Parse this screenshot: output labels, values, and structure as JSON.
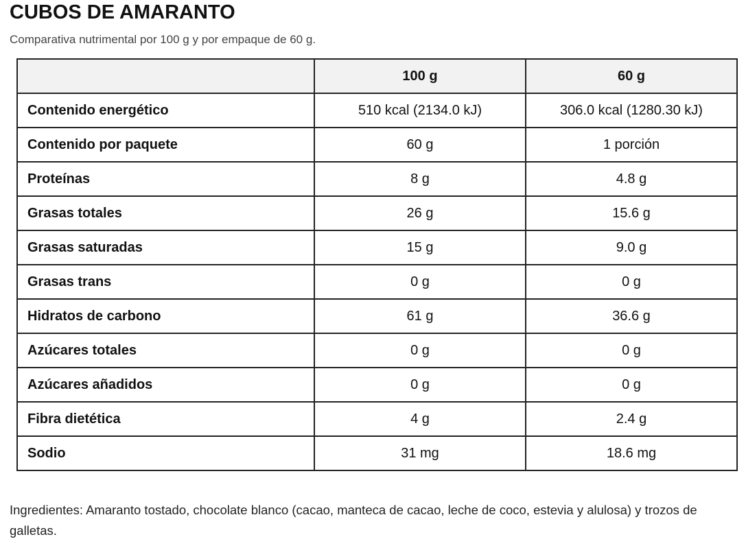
{
  "header": {
    "title": "CUBOS DE AMARANTO",
    "subtitle": "Comparativa nutrimental por 100 g y por empaque de 60 g."
  },
  "table": {
    "columns": [
      "100 g",
      "60 g"
    ],
    "rows": [
      [
        "Contenido energético",
        "510 kcal (2134.0 kJ)",
        "306.0 kcal (1280.30 kJ)"
      ],
      [
        "Contenido por paquete",
        "60 g",
        "1 porción"
      ],
      [
        "Proteínas",
        "8 g",
        "4.8 g"
      ],
      [
        "Grasas totales",
        "26 g",
        "15.6 g"
      ],
      [
        "Grasas saturadas",
        "15 g",
        "9.0 g"
      ],
      [
        "Grasas trans",
        "0 g",
        "0 g"
      ],
      [
        "Hidratos de carbono",
        "61 g",
        "36.6 g"
      ],
      [
        "Azúcares totales",
        "0 g",
        "0 g"
      ],
      [
        "Azúcares añadidos",
        "0 g",
        "0 g"
      ],
      [
        "Fibra dietética",
        "4 g",
        "2.4 g"
      ],
      [
        "Sodio",
        "31 mg",
        "18.6 mg"
      ]
    ]
  },
  "footer": {
    "ingredients": "Ingredientes: Amaranto tostado, chocolate blanco (cacao, manteca de cacao, leche de coco, estevia y alulosa) y trozos de galletas."
  }
}
